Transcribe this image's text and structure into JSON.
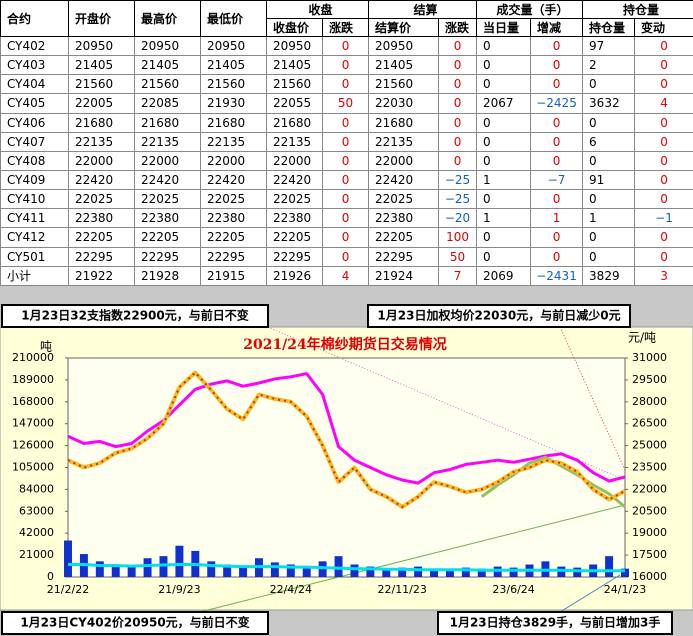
{
  "table": {
    "header1": [
      "合约",
      "开盘价",
      "最高价",
      "最低价",
      "收盘",
      "结算",
      "成交量（手）",
      "持仓量"
    ],
    "header2": [
      "收盘价",
      "涨跌",
      "结算价",
      "涨跌",
      "当日量",
      "增减",
      "持仓量",
      "变动"
    ],
    "rows": [
      [
        "CY402",
        "20950",
        "20950",
        "20950",
        "20950",
        "0",
        "20950",
        "0",
        "0",
        "0",
        "97",
        "0"
      ],
      [
        "CY403",
        "21405",
        "21405",
        "21405",
        "21405",
        "0",
        "21405",
        "0",
        "0",
        "0",
        "2",
        "0"
      ],
      [
        "CY404",
        "21560",
        "21560",
        "21560",
        "21560",
        "0",
        "21560",
        "0",
        "0",
        "0",
        "0",
        "0"
      ],
      [
        "CY405",
        "22005",
        "22085",
        "21930",
        "22055",
        "50",
        "22030",
        "0",
        "2067",
        "−2425",
        "3632",
        "4"
      ],
      [
        "CY406",
        "21680",
        "21680",
        "21680",
        "21680",
        "0",
        "21680",
        "0",
        "0",
        "0",
        "0",
        "0"
      ],
      [
        "CY407",
        "22135",
        "22135",
        "22135",
        "22135",
        "0",
        "22135",
        "0",
        "0",
        "0",
        "6",
        "0"
      ],
      [
        "CY408",
        "22000",
        "22000",
        "22000",
        "22000",
        "0",
        "22000",
        "0",
        "0",
        "0",
        "0",
        "0"
      ],
      [
        "CY409",
        "22420",
        "22420",
        "22420",
        "22420",
        "0",
        "22420",
        "−25",
        "1",
        "−7",
        "91",
        "0"
      ],
      [
        "CY410",
        "22025",
        "22025",
        "22025",
        "22025",
        "0",
        "22025",
        "−25",
        "0",
        "0",
        "0",
        "0"
      ],
      [
        "CY411",
        "22380",
        "22380",
        "22380",
        "22380",
        "0",
        "22380",
        "−20",
        "1",
        "1",
        "1",
        "−1"
      ],
      [
        "CY412",
        "22205",
        "22205",
        "22205",
        "22205",
        "0",
        "22205",
        "100",
        "0",
        "0",
        "0",
        "0"
      ],
      [
        "CY501",
        "22295",
        "22295",
        "22295",
        "22295",
        "0",
        "22295",
        "50",
        "0",
        "0",
        "0",
        "0"
      ],
      [
        "小计",
        "21922",
        "21928",
        "21915",
        "21926",
        "4",
        "21924",
        "7",
        "2069",
        "−2431",
        "3829",
        "3"
      ]
    ]
  },
  "annotations": [
    "1月23日32支指数22900元，与前日不变",
    "1月23日加权均价22030元，与前日减少0元",
    "1月23日CY402价20950元，与前日不变",
    "1月23日持仓3829手，与前日增加3手"
  ],
  "chart_data": {
    "type": "line",
    "title": "2021/24年棉纱期货日交易情况",
    "ylabel": "吨",
    "y2label": "元/吨",
    "categories": [
      "21/2/22",
      null,
      null,
      null,
      null,
      null,
      null,
      "21/9/23",
      null,
      null,
      null,
      null,
      null,
      null,
      "22/4/24",
      null,
      null,
      null,
      null,
      null,
      null,
      "22/11/23",
      null,
      null,
      null,
      null,
      null,
      null,
      "23/6/24",
      null,
      null,
      null,
      null,
      null,
      null,
      "24/1/23"
    ],
    "ylim": [
      0,
      210000
    ],
    "yticks": [
      0,
      21000,
      42000,
      63000,
      84000,
      105000,
      126000,
      147000,
      168000,
      189000,
      210000
    ],
    "y2lim": [
      16000,
      31000
    ],
    "y2ticks": [
      16000,
      17500,
      19000,
      20500,
      22000,
      23500,
      25000,
      26500,
      28000,
      29500,
      31000
    ],
    "series": [
      {
        "type": "bar",
        "color": "#1030d0",
        "values": [
          35000,
          22000,
          15000,
          12000,
          10000,
          18000,
          20000,
          30000,
          25000,
          15000,
          12000,
          10000,
          18000,
          14000,
          12000,
          10000,
          15000,
          20000,
          12000,
          10000,
          8000,
          9000,
          10000,
          8000,
          7000,
          9000,
          8000,
          10000,
          9000,
          12000,
          15000,
          10000,
          9000,
          12000,
          20000,
          8000
        ]
      },
      {
        "type": "line",
        "color": "#00e0f0",
        "values": [
          12000,
          12000,
          11000,
          11000,
          10500,
          11000,
          11500,
          12000,
          12000,
          11000,
          10500,
          10000,
          10000,
          10000,
          9500,
          9500,
          9000,
          8500,
          8000,
          8000,
          7500,
          7500,
          7000,
          7000,
          7000,
          7000,
          6500,
          6500,
          6500,
          6500,
          6500,
          6500,
          6000,
          6000,
          6000,
          6000
        ]
      },
      {
        "type": "line",
        "color": "#ff00ff",
        "values": [
          135000,
          128000,
          130000,
          125000,
          128000,
          140000,
          150000,
          165000,
          180000,
          185000,
          188000,
          183000,
          186000,
          190000,
          192000,
          195000,
          175000,
          125000,
          112000,
          105000,
          98000,
          93000,
          90000,
          100000,
          103000,
          108000,
          110000,
          112000,
          110000,
          113000,
          116000,
          118000,
          112000,
          100000,
          92000,
          96000
        ]
      },
      {
        "type": "line",
        "axis": "y2",
        "color": "#90c060",
        "values": [
          null,
          null,
          null,
          null,
          null,
          null,
          null,
          null,
          null,
          null,
          null,
          null,
          null,
          null,
          null,
          null,
          null,
          null,
          null,
          null,
          null,
          null,
          null,
          null,
          null,
          null,
          21500,
          22300,
          23000,
          23800,
          24200,
          23600,
          23000,
          22300,
          21700,
          20800
        ]
      },
      {
        "type": "line",
        "axis": "y2",
        "color": "#f0c020",
        "values": [
          24000,
          23500,
          23800,
          24500,
          24800,
          25500,
          26500,
          29000,
          30000,
          28800,
          27500,
          26800,
          28500,
          28200,
          28000,
          27000,
          25000,
          22500,
          23500,
          22000,
          21500,
          20800,
          21500,
          22500,
          22200,
          21800,
          22000,
          22500,
          23200,
          23500,
          24000,
          23800,
          23200,
          22000,
          21300,
          21900
        ]
      }
    ]
  }
}
